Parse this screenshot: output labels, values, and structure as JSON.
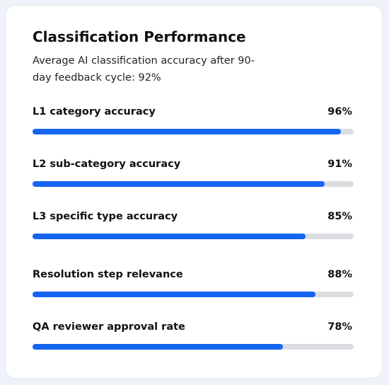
{
  "chart_data": {
    "type": "bar",
    "orientation": "horizontal",
    "title": "Classification Performance",
    "subtitle": "Average AI classification accuracy after 90-day feedback cycle: 92%",
    "categories": [
      "L1 category accuracy",
      "L2 sub-category accuracy",
      "L3 specific type accuracy",
      "Resolution step relevance",
      "QA reviewer approval rate"
    ],
    "values": [
      96,
      91,
      85,
      88,
      78
    ],
    "value_labels": [
      "96%",
      "91%",
      "85%",
      "88%",
      "78%"
    ],
    "xlim": [
      0,
      100
    ],
    "color": "#1565f0",
    "track_color": "#dcdde1"
  }
}
